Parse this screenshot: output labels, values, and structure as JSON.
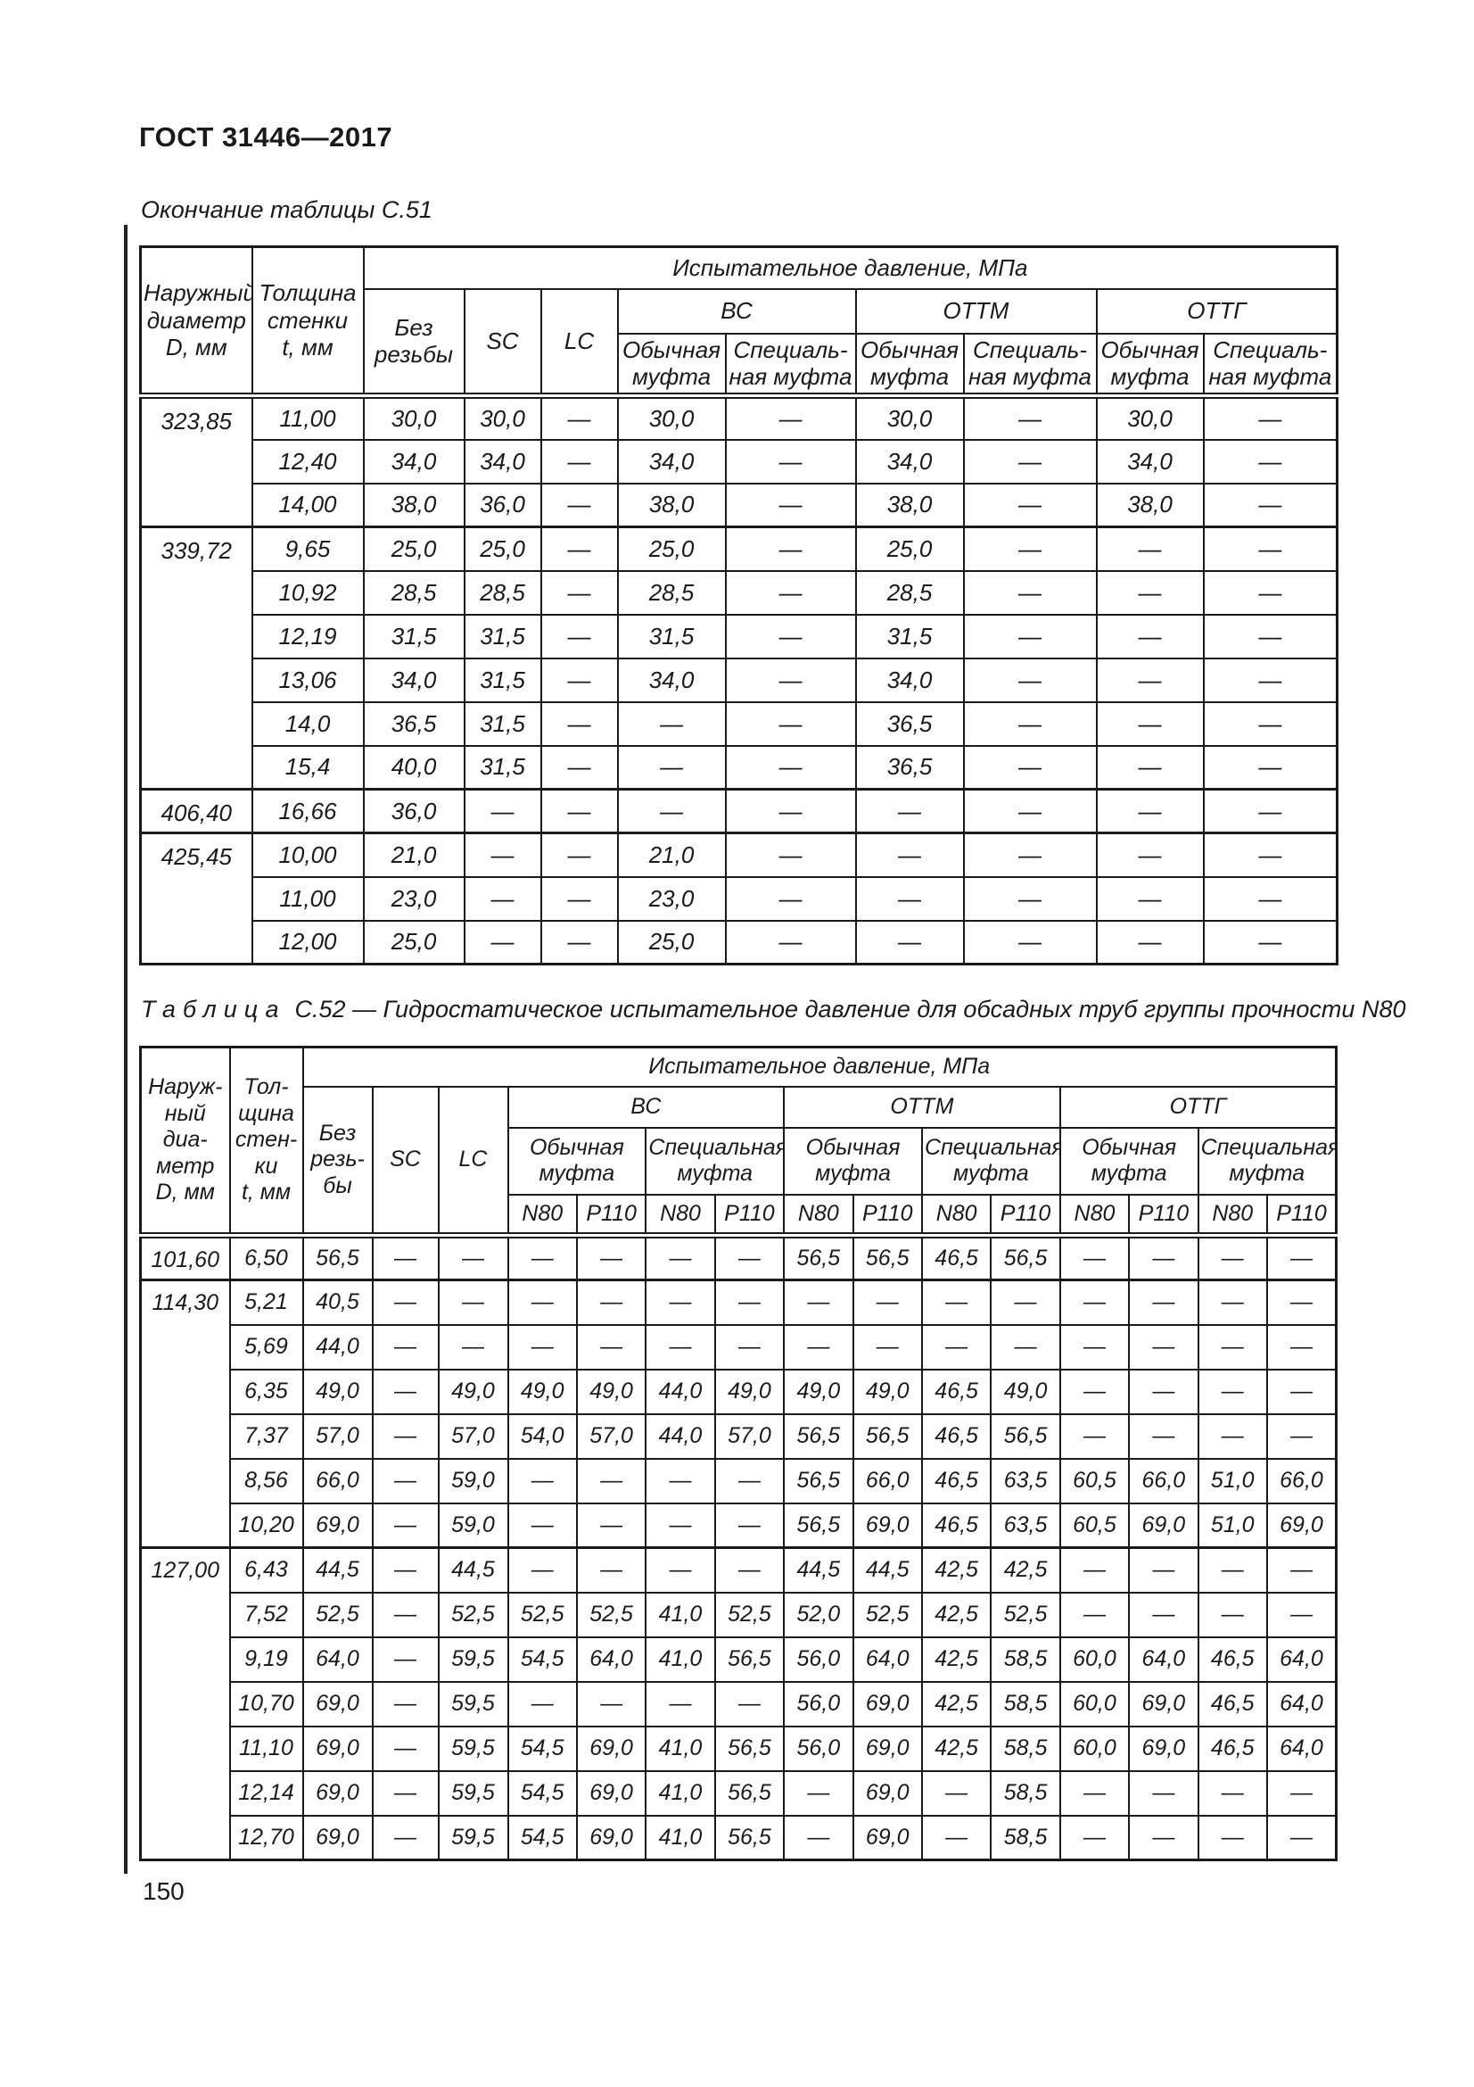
{
  "page": {
    "standard": "ГОСТ 31446—2017",
    "page_number": "150"
  },
  "table1": {
    "caption": "Окончание таблицы С.51",
    "header": {
      "outer_diameter": "Наружный\nдиаметр\nD, мм",
      "wall_thickness": "Толщина\nстенки\nt, мм",
      "pressure_title": "Испытательное давление, МПа",
      "no_thread": "Без\nрезьбы",
      "sc": "SC",
      "lc": "LC",
      "groups": [
        "ВС",
        "ОТТМ",
        "ОТТГ"
      ],
      "coupling_regular": "Обычная\nмуфта",
      "coupling_special": "Специаль-\nная муфта"
    },
    "rows": [
      {
        "d": "323,85",
        "span": 3,
        "t": "11,00",
        "v": [
          "30,0",
          "30,0",
          "—",
          "30,0",
          "—",
          "30,0",
          "—",
          "30,0",
          "—"
        ]
      },
      {
        "t": "12,40",
        "v": [
          "34,0",
          "34,0",
          "—",
          "34,0",
          "—",
          "34,0",
          "—",
          "34,0",
          "—"
        ]
      },
      {
        "t": "14,00",
        "v": [
          "38,0",
          "36,0",
          "—",
          "38,0",
          "—",
          "38,0",
          "—",
          "38,0",
          "—"
        ]
      },
      {
        "d": "339,72",
        "span": 6,
        "t": "9,65",
        "v": [
          "25,0",
          "25,0",
          "—",
          "25,0",
          "—",
          "25,0",
          "—",
          "—",
          "—"
        ]
      },
      {
        "t": "10,92",
        "v": [
          "28,5",
          "28,5",
          "—",
          "28,5",
          "—",
          "28,5",
          "—",
          "—",
          "—"
        ]
      },
      {
        "t": "12,19",
        "v": [
          "31,5",
          "31,5",
          "—",
          "31,5",
          "—",
          "31,5",
          "—",
          "—",
          "—"
        ]
      },
      {
        "t": "13,06",
        "v": [
          "34,0",
          "31,5",
          "—",
          "34,0",
          "—",
          "34,0",
          "—",
          "—",
          "—"
        ]
      },
      {
        "t": "14,0",
        "v": [
          "36,5",
          "31,5",
          "—",
          "—",
          "—",
          "36,5",
          "—",
          "—",
          "—"
        ]
      },
      {
        "t": "15,4",
        "v": [
          "40,0",
          "31,5",
          "—",
          "—",
          "—",
          "36,5",
          "—",
          "—",
          "—"
        ]
      },
      {
        "d": "406,40",
        "span": 1,
        "t": "16,66",
        "v": [
          "36,0",
          "—",
          "—",
          "—",
          "—",
          "—",
          "—",
          "—",
          "—"
        ]
      },
      {
        "d": "425,45",
        "span": 3,
        "t": "10,00",
        "v": [
          "21,0",
          "—",
          "—",
          "21,0",
          "—",
          "—",
          "—",
          "—",
          "—"
        ]
      },
      {
        "t": "11,00",
        "v": [
          "23,0",
          "—",
          "—",
          "23,0",
          "—",
          "—",
          "—",
          "—",
          "—"
        ]
      },
      {
        "t": "12,00",
        "v": [
          "25,0",
          "—",
          "—",
          "25,0",
          "—",
          "—",
          "—",
          "—",
          "—"
        ]
      }
    ]
  },
  "table2": {
    "caption_word": "Таблица",
    "caption_rest": "С.52 — Гидростатическое испытательное давление для обсадных труб группы прочности N80",
    "header": {
      "outer_diameter": "Наруж-\nный\nдиа-\nметр\nD, мм",
      "wall_thickness": "Тол-\nщина\nстен-\nки\nt, мм",
      "pressure_title": "Испытательное давление, МПа",
      "no_thread": "Без\nрезь-\nбы",
      "sc": "SC",
      "lc": "LC",
      "groups": [
        "ВС",
        "ОТТМ",
        "ОТТГ"
      ],
      "coupling_regular": "Обычная\nмуфта",
      "coupling_special": "Специальная\nмуфта",
      "grades": [
        "N80",
        "P110"
      ]
    },
    "rows": [
      {
        "d": "101,60",
        "span": 1,
        "t": "6,50",
        "v": [
          "56,5",
          "—",
          "—",
          "—",
          "—",
          "—",
          "—",
          "56,5",
          "56,5",
          "46,5",
          "56,5",
          "—",
          "—",
          "—",
          "—"
        ]
      },
      {
        "d": "114,30",
        "span": 6,
        "t": "5,21",
        "v": [
          "40,5",
          "—",
          "—",
          "—",
          "—",
          "—",
          "—",
          "—",
          "—",
          "—",
          "—",
          "—",
          "—",
          "—",
          "—"
        ]
      },
      {
        "t": "5,69",
        "v": [
          "44,0",
          "—",
          "—",
          "—",
          "—",
          "—",
          "—",
          "—",
          "—",
          "—",
          "—",
          "—",
          "—",
          "—",
          "—"
        ]
      },
      {
        "t": "6,35",
        "v": [
          "49,0",
          "—",
          "49,0",
          "49,0",
          "49,0",
          "44,0",
          "49,0",
          "49,0",
          "49,0",
          "46,5",
          "49,0",
          "—",
          "—",
          "—",
          "—"
        ]
      },
      {
        "t": "7,37",
        "v": [
          "57,0",
          "—",
          "57,0",
          "54,0",
          "57,0",
          "44,0",
          "57,0",
          "56,5",
          "56,5",
          "46,5",
          "56,5",
          "—",
          "—",
          "—",
          "—"
        ]
      },
      {
        "t": "8,56",
        "v": [
          "66,0",
          "—",
          "59,0",
          "—",
          "—",
          "—",
          "—",
          "56,5",
          "66,0",
          "46,5",
          "63,5",
          "60,5",
          "66,0",
          "51,0",
          "66,0"
        ]
      },
      {
        "t": "10,20",
        "v": [
          "69,0",
          "—",
          "59,0",
          "—",
          "—",
          "—",
          "—",
          "56,5",
          "69,0",
          "46,5",
          "63,5",
          "60,5",
          "69,0",
          "51,0",
          "69,0"
        ]
      },
      {
        "d": "127,00",
        "span": 7,
        "t": "6,43",
        "v": [
          "44,5",
          "—",
          "44,5",
          "—",
          "—",
          "—",
          "—",
          "44,5",
          "44,5",
          "42,5",
          "42,5",
          "—",
          "—",
          "—",
          "—"
        ]
      },
      {
        "t": "7,52",
        "v": [
          "52,5",
          "—",
          "52,5",
          "52,5",
          "52,5",
          "41,0",
          "52,5",
          "52,0",
          "52,5",
          "42,5",
          "52,5",
          "—",
          "—",
          "—",
          "—"
        ]
      },
      {
        "t": "9,19",
        "v": [
          "64,0",
          "—",
          "59,5",
          "54,5",
          "64,0",
          "41,0",
          "56,5",
          "56,0",
          "64,0",
          "42,5",
          "58,5",
          "60,0",
          "64,0",
          "46,5",
          "64,0"
        ]
      },
      {
        "t": "10,70",
        "v": [
          "69,0",
          "—",
          "59,5",
          "—",
          "—",
          "—",
          "—",
          "56,0",
          "69,0",
          "42,5",
          "58,5",
          "60,0",
          "69,0",
          "46,5",
          "64,0"
        ]
      },
      {
        "t": "11,10",
        "v": [
          "69,0",
          "—",
          "59,5",
          "54,5",
          "69,0",
          "41,0",
          "56,5",
          "56,0",
          "69,0",
          "42,5",
          "58,5",
          "60,0",
          "69,0",
          "46,5",
          "64,0"
        ]
      },
      {
        "t": "12,14",
        "v": [
          "69,0",
          "—",
          "59,5",
          "54,5",
          "69,0",
          "41,0",
          "56,5",
          "—",
          "69,0",
          "—",
          "58,5",
          "—",
          "—",
          "—",
          "—"
        ]
      },
      {
        "t": "12,70",
        "v": [
          "69,0",
          "—",
          "59,5",
          "54,5",
          "69,0",
          "41,0",
          "56,5",
          "—",
          "69,0",
          "—",
          "58,5",
          "—",
          "—",
          "—",
          "—"
        ]
      }
    ]
  }
}
